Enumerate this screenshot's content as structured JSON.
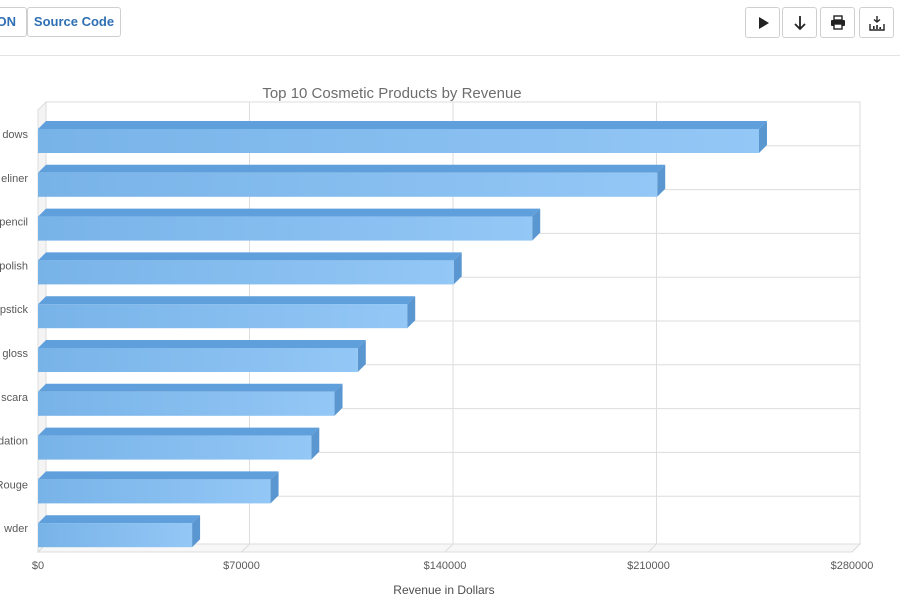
{
  "toolbar": {
    "json_tab_label": "ON",
    "source_tab_label": "Source Code",
    "icons": [
      "play-icon",
      "download-arrow-icon",
      "print-icon",
      "export-chart-icon"
    ]
  },
  "chart_data": {
    "type": "bar",
    "orientation": "horizontal",
    "style": "3d",
    "title": "Top 10 Cosmetic Products by Revenue",
    "xlabel": "Revenue in Dollars",
    "ylabel": "",
    "categories": [
      "dows",
      "eliner",
      "pencil",
      "polish",
      "pstick",
      "gloss",
      "scara",
      "dation",
      "Rouge",
      "wder"
    ],
    "values": [
      248000,
      213000,
      170000,
      143000,
      127000,
      110000,
      102000,
      94000,
      80000,
      53000
    ],
    "xlim": [
      0,
      280000
    ],
    "x_ticks": [
      0,
      70000,
      140000,
      210000,
      280000
    ],
    "x_tick_labels": [
      "$0",
      "$70000",
      "$140000",
      "$210000",
      "$280000"
    ],
    "grid": true,
    "legend": "none",
    "colors": {
      "bar_front_start": "#78b3e8",
      "bar_front_end": "#93c7f6",
      "bar_top": "#5f9fdc",
      "bar_side": "#5a96d0",
      "grid": "#dddddd",
      "accent": "#2f6fb3"
    }
  }
}
